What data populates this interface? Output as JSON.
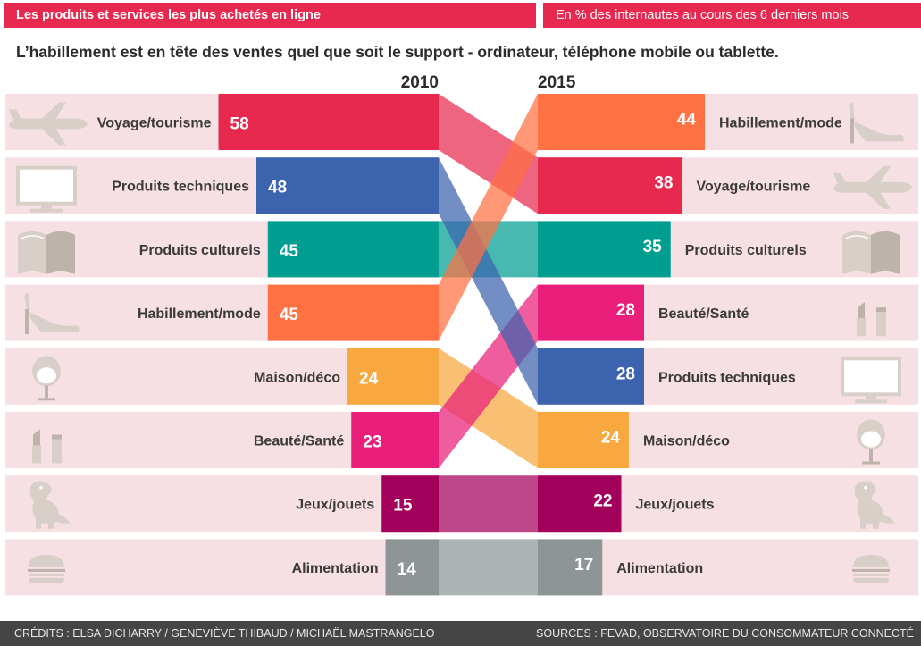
{
  "header": {
    "title": "Les produits et services les plus achetés en ligne",
    "unit_note": "En % des internautes au cours des 6 derniers mois",
    "title_color": "#e8294f",
    "note_color": "#e8294f"
  },
  "subtitle": "L’habillement est en tête des ventes quel que soit le support - ordinateur, téléphone mobile ou tablette.",
  "footer": {
    "credits": "CRÉDITS : ELSA DICHARRY / GENEVIÈVE THIBAUD / MICHAËL MASTRANGELO",
    "sources": "SOURCES : FEVAD, OBSERVATOIRE DU CONSOMMATEUR CONNECTÉ"
  },
  "chart_data": {
    "type": "bar",
    "subtype": "slope-ranking",
    "years": [
      "2010",
      "2015"
    ],
    "unit": "%",
    "categories": [
      {
        "name": "Voyage/tourisme",
        "icon": "plane-icon",
        "color": "#e8294f",
        "v2010": 58,
        "v2015": 38,
        "rank2010": 1,
        "rank2015": 2
      },
      {
        "name": "Produits techniques",
        "icon": "monitor-icon",
        "color": "#3c63ad",
        "v2010": 48,
        "v2015": 28,
        "rank2010": 2,
        "rank2015": 5
      },
      {
        "name": "Produits culturels",
        "icon": "book-icon",
        "color": "#009e91",
        "v2010": 45,
        "v2015": 35,
        "rank2010": 3,
        "rank2015": 3
      },
      {
        "name": "Habillement/mode",
        "icon": "high-heel-icon",
        "color": "#ff7043",
        "v2010": 45,
        "v2015": 44,
        "rank2010": 4,
        "rank2015": 1
      },
      {
        "name": "Maison/déco",
        "icon": "chair-icon",
        "color": "#f7a83f",
        "v2010": 24,
        "v2015": 24,
        "rank2010": 5,
        "rank2015": 6
      },
      {
        "name": "Beauté/Santé",
        "icon": "lipstick-icon",
        "color": "#e91e7a",
        "v2010": 23,
        "v2015": 28,
        "rank2010": 6,
        "rank2015": 4
      },
      {
        "name": "Jeux/jouets",
        "icon": "dinosaur-icon",
        "color": "#a3005c",
        "v2010": 15,
        "v2015": 22,
        "rank2010": 7,
        "rank2015": 7
      },
      {
        "name": "Alimentation",
        "icon": "burger-icon",
        "color": "#8e9597",
        "v2010": 14,
        "v2015": 17,
        "rank2010": 8,
        "rank2015": 8
      }
    ]
  }
}
